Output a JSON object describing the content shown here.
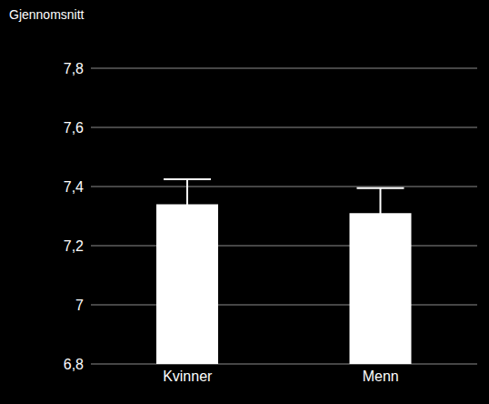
{
  "chart_data": {
    "type": "bar",
    "y_label": "Gjennomsnitt",
    "categories": [
      "Kvinner",
      "Menn"
    ],
    "values": [
      7.34,
      7.31
    ],
    "errors": [
      0.085,
      0.085
    ],
    "color": "#ffffff",
    "ylim": [
      6.8,
      7.8
    ],
    "yticks": [
      {
        "value": 6.8,
        "label": "6,8"
      },
      7,
      {
        "value": 7.2,
        "label": "7,2"
      },
      {
        "value": 7.4,
        "label": "7,4"
      },
      {
        "value": 7.6,
        "label": "7,6"
      },
      {
        "value": 7.8,
        "label": "7,8"
      }
    ],
    "grid": true
  }
}
